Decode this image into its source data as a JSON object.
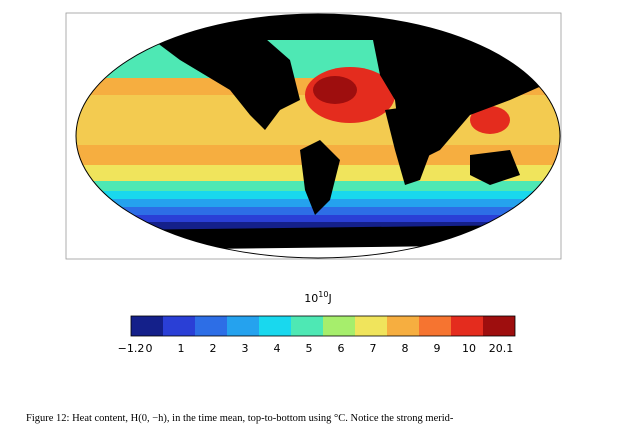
{
  "figure": {
    "colorbar": {
      "unit_base": "10",
      "unit_exponent": "10",
      "unit": "J",
      "ticks": [
        "−1.2",
        "0",
        "1",
        "2",
        "3",
        "4",
        "5",
        "6",
        "7",
        "8",
        "9",
        "10",
        "20.1"
      ],
      "colors": [
        "#14208a",
        "#2a3fd6",
        "#2d6ee6",
        "#25a2ee",
        "#19d8ee",
        "#4ee8b4",
        "#a6ee6c",
        "#f0e45c",
        "#f6ae40",
        "#f67430",
        "#e42c1e",
        "#9e0e0e"
      ]
    },
    "caption": "Figure 12: Heat content, H(0, −h), in the time mean, top-to-bottom using °C. Notice the strong merid-"
  }
}
